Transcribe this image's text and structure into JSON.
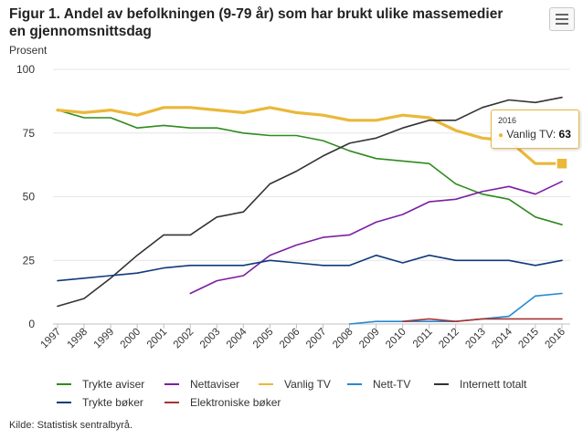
{
  "header": {
    "title": "Figur 1. Andel av befolkningen (9-79 år) som har brukt ulike massemedier en gjennomsnittsdag",
    "unit_label": "Prosent"
  },
  "footer": {
    "source": "Kilde: Statistisk sentralbyrå."
  },
  "menu": {
    "icon": "hamburger-menu-icon"
  },
  "tooltip": {
    "year": "2016",
    "series": "Vanlig TV",
    "separator": ": ",
    "value": "63",
    "color": "#eab83a"
  },
  "chart_data": {
    "type": "line",
    "title": "Figur 1. Andel av befolkningen (9-79 år) som har brukt ulike massemedier en gjennomsnittsdag",
    "ylabel": "Prosent",
    "xlabel": "",
    "ylim": [
      0,
      100
    ],
    "y_ticks": [
      "0",
      "25",
      "50",
      "75",
      "100"
    ],
    "y_tick_values": [
      0,
      25,
      50,
      75,
      100
    ],
    "categories": [
      "1997",
      "1998",
      "1999",
      "2000",
      "2001",
      "2002",
      "2003",
      "2004",
      "2005",
      "2006",
      "2007",
      "2008",
      "2009",
      "2010",
      "2011",
      "2012",
      "2013",
      "2014",
      "2015",
      "2016"
    ],
    "grid": true,
    "legend_position": "bottom",
    "series": [
      {
        "name": "Trykte aviser",
        "color": "#2e8b1e",
        "width": 1.6,
        "values": [
          84,
          81,
          81,
          77,
          78,
          77,
          77,
          75,
          74,
          74,
          72,
          68,
          65,
          64,
          63,
          55,
          51,
          49,
          42,
          39
        ]
      },
      {
        "name": "Nettaviser",
        "color": "#7b1fa2",
        "width": 1.6,
        "values": [
          null,
          null,
          null,
          null,
          null,
          12,
          17,
          19,
          27,
          31,
          34,
          35,
          40,
          43,
          48,
          49,
          52,
          54,
          51,
          56
        ]
      },
      {
        "name": "Vanlig TV",
        "color": "#eab83a",
        "width": 3.2,
        "values": [
          84,
          83,
          84,
          82,
          85,
          85,
          84,
          83,
          85,
          83,
          82,
          80,
          80,
          82,
          81,
          76,
          73,
          72,
          63,
          63
        ]
      },
      {
        "name": "Nett-TV",
        "color": "#2589d0",
        "width": 1.6,
        "values": [
          null,
          null,
          null,
          null,
          null,
          null,
          null,
          null,
          null,
          null,
          null,
          0,
          1,
          1,
          1,
          1,
          2,
          3,
          11,
          12
        ]
      },
      {
        "name": "Internett totalt",
        "color": "#333333",
        "width": 1.6,
        "values": [
          7,
          10,
          18,
          27,
          35,
          35,
          42,
          44,
          55,
          60,
          66,
          71,
          73,
          77,
          80,
          80,
          85,
          88,
          87,
          89
        ]
      },
      {
        "name": "Trykte bøker",
        "color": "#0f3a7d",
        "width": 1.6,
        "values": [
          17,
          18,
          19,
          20,
          22,
          23,
          23,
          23,
          25,
          24,
          23,
          23,
          27,
          24,
          27,
          25,
          25,
          25,
          23,
          25
        ]
      },
      {
        "name": "Elektroniske bøker",
        "color": "#a83232",
        "width": 1.6,
        "values": [
          null,
          null,
          null,
          null,
          null,
          null,
          null,
          null,
          null,
          null,
          null,
          null,
          null,
          1,
          2,
          1,
          2,
          2,
          2,
          2
        ]
      }
    ]
  }
}
